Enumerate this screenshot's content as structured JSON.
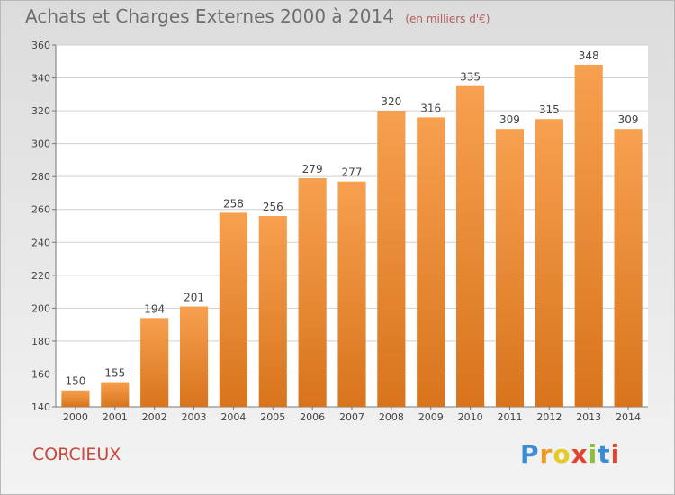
{
  "header": {
    "title": "Achats et Charges Externes 2000 à 2014",
    "subtitle": "(en milliers d'€)"
  },
  "footer": {
    "commune": "CORCIEUX",
    "logo_letters": [
      {
        "char": "P",
        "color": "#3a8dd4"
      },
      {
        "char": "r",
        "color": "#f29a1e"
      },
      {
        "char": "o",
        "color": "#e9c82a"
      },
      {
        "char": "x",
        "color": "#e2452f"
      },
      {
        "char": "i",
        "color": "#8bbf3a"
      },
      {
        "char": "t",
        "color": "#3a8dd4"
      },
      {
        "char": "i",
        "color": "#e2452f"
      }
    ]
  },
  "colors": {
    "bar_top": "#f7a04f",
    "bar_bottom": "#d8741c",
    "grid": "#cfcfcf",
    "axis": "#777777"
  },
  "chart_data": {
    "type": "bar",
    "title": "Achats et Charges Externes 2000 à 2014",
    "subtitle": "(en milliers d'€)",
    "categories": [
      "2000",
      "2001",
      "2002",
      "2003",
      "2004",
      "2005",
      "2006",
      "2007",
      "2008",
      "2009",
      "2010",
      "2011",
      "2012",
      "2013",
      "2014"
    ],
    "values": [
      150,
      155,
      194,
      201,
      258,
      256,
      279,
      277,
      320,
      316,
      335,
      309,
      315,
      348,
      309
    ],
    "ylim": [
      140,
      360
    ],
    "yticks": [
      140,
      160,
      180,
      200,
      220,
      240,
      260,
      280,
      300,
      320,
      340,
      360
    ],
    "grid": true
  }
}
